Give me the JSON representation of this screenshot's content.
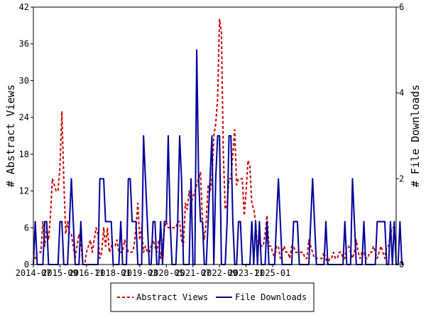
{
  "chart_data": {
    "type": "line",
    "x_ticks": [
      "2014-07",
      "2015-09",
      "2016-11",
      "2018-01",
      "2019-03",
      "2020-05",
      "2021-07",
      "2022-09",
      "2023-11",
      "2025-01"
    ],
    "y_left": {
      "label": "# Abstract Views",
      "range": [
        0,
        42
      ],
      "ticks": [
        0,
        6,
        12,
        18,
        24,
        30,
        36,
        42
      ]
    },
    "y_right": {
      "label": "# File Downloads",
      "range": [
        0,
        6
      ],
      "ticks": [
        0,
        2,
        4,
        6
      ]
    },
    "legend_position": "bottom-center",
    "grid": false,
    "x_start": "2014-07",
    "series": [
      {
        "name": "Abstract Views",
        "axis": "left",
        "color": "#cc0000",
        "dash": true,
        "values": [
          2,
          1,
          2,
          2,
          2,
          7,
          3,
          6,
          4,
          8,
          14,
          13,
          12,
          12,
          16,
          25,
          14,
          5,
          7,
          5,
          5,
          3,
          1,
          3,
          5,
          4,
          0,
          0,
          2,
          3,
          4,
          2,
          4,
          6,
          5,
          1,
          2,
          6,
          3,
          6,
          2,
          3,
          3,
          3,
          4,
          2,
          2,
          2,
          4,
          3,
          2,
          2,
          2,
          3,
          6,
          10,
          4,
          6,
          2,
          3,
          2,
          2,
          3,
          4,
          3,
          2,
          4,
          1,
          3,
          6,
          7,
          6,
          6,
          6,
          6,
          6,
          7,
          7,
          4,
          3,
          10,
          9,
          12,
          10,
          11,
          12,
          13,
          14,
          15,
          7,
          4,
          7,
          13,
          12,
          14,
          21,
          23,
          27,
          40,
          38,
          18,
          9,
          10,
          14,
          14,
          18,
          22,
          13,
          14,
          14,
          14,
          8,
          12,
          17,
          16,
          10,
          9,
          7,
          2,
          4,
          3,
          3,
          5,
          8,
          3,
          3,
          2,
          1,
          3,
          3,
          1,
          2,
          3,
          2,
          2,
          1,
          3,
          3,
          2,
          2,
          2,
          2,
          2,
          1,
          1,
          4,
          3,
          2,
          1,
          1,
          1,
          1,
          1,
          2,
          1,
          0,
          1,
          1,
          2,
          1,
          1,
          2,
          2,
          1,
          1,
          3,
          3,
          2,
          1,
          2,
          4,
          2,
          1,
          2,
          2,
          1,
          1,
          2,
          2,
          3,
          2,
          1,
          2,
          3,
          2,
          1,
          3,
          3,
          5,
          6,
          6,
          1
        ]
      },
      {
        "name": "File Downloads",
        "axis": "right",
        "color": "#000099",
        "dash": false,
        "values": [
          0,
          1,
          0,
          0,
          0,
          0,
          1,
          1,
          0,
          0,
          0,
          0,
          0,
          0,
          1,
          1,
          0,
          0,
          0,
          1,
          2,
          1,
          0,
          0,
          0,
          1,
          0,
          0,
          0,
          0,
          0,
          0,
          0,
          0,
          0,
          2,
          2,
          2,
          1,
          1,
          1,
          1,
          0,
          0,
          0,
          0,
          1,
          0,
          0,
          0,
          2,
          2,
          1,
          1,
          1,
          0,
          0,
          0,
          3,
          2,
          1,
          0,
          0,
          1,
          1,
          0,
          0,
          1,
          0,
          1,
          1,
          3,
          1,
          0,
          0,
          0,
          1,
          3,
          2,
          0,
          0,
          0,
          0,
          2,
          0,
          0,
          5,
          2,
          1,
          1,
          0,
          0,
          1,
          2,
          3,
          0,
          2,
          3,
          3,
          0,
          0,
          0,
          1,
          3,
          3,
          1,
          0,
          0,
          1,
          1,
          0,
          0,
          0,
          0,
          0,
          1,
          0,
          1,
          0,
          1,
          0,
          0,
          0,
          1,
          0,
          0,
          0,
          0,
          1,
          2,
          1,
          0,
          0,
          0,
          0,
          0,
          0,
          1,
          1,
          1,
          0,
          0,
          0,
          0,
          0,
          0,
          1,
          2,
          1,
          0,
          0,
          0,
          0,
          0,
          1,
          0,
          0,
          0,
          0,
          0,
          0,
          0,
          0,
          0,
          1,
          0,
          0,
          0,
          2,
          1,
          0,
          0,
          0,
          0,
          1,
          0,
          0,
          0,
          0,
          0,
          0,
          1,
          1,
          1,
          1,
          1,
          0,
          0,
          1,
          0,
          1,
          0,
          0,
          1,
          0,
          0
        ]
      }
    ]
  }
}
